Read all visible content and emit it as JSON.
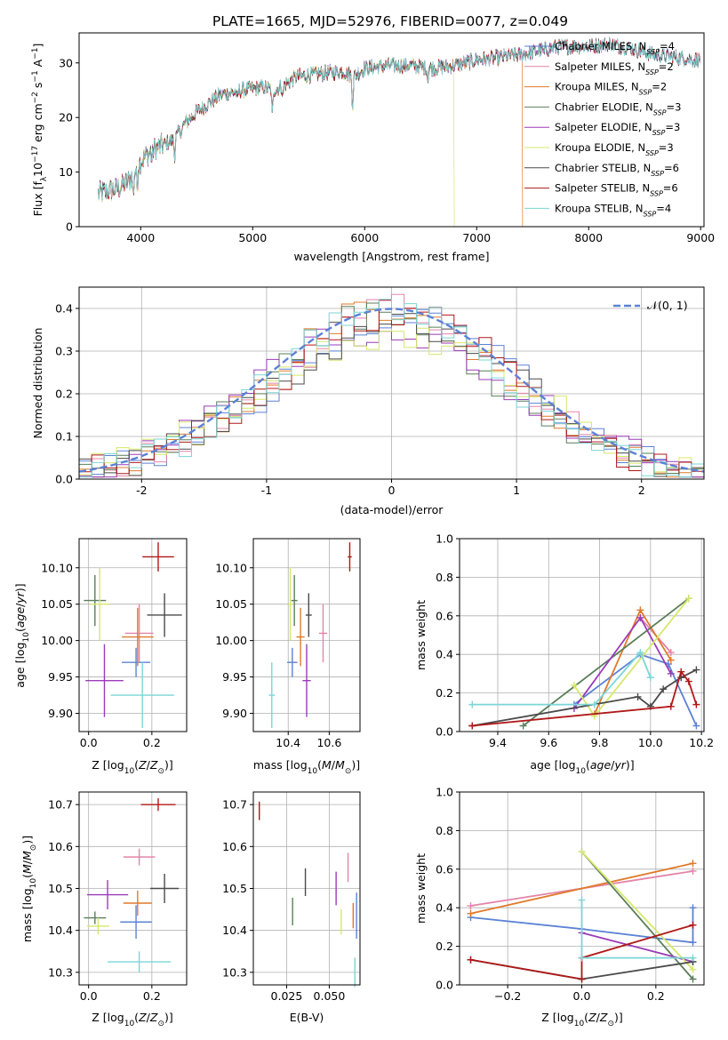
{
  "title": "PLATE=1665, MJD=52976, FIBERID=0077, z=0.049",
  "colors": {
    "Chabrier MILES": "#5b82d6",
    "Salpeter MILES": "#e484a8",
    "Kroupa MILES": "#e07a2a",
    "Chabrier ELODIE": "#5a7f5a",
    "Salpeter ELODIE": "#9a3bb8",
    "Kroupa ELODIE": "#d6e86a",
    "Chabrier STELIB": "#4a4a4a",
    "Salpeter STELIB": "#b01818",
    "Kroupa STELIB": "#7ad6d6"
  },
  "chart_data": [
    {
      "id": "spectrum",
      "type": "line",
      "title": "PLATE=1665, MJD=52976, FIBERID=0077, z=0.049",
      "xlabel": "wavelength [Angstrom, rest frame]",
      "ylabel": "Flux [f_λ 10⁻¹⁷ erg cm⁻² s⁻¹ A⁻¹]",
      "xlim": [
        3450,
        9030
      ],
      "ylim": [
        0,
        35.5
      ],
      "xticks": [
        4000,
        5000,
        6000,
        7000,
        8000,
        9000
      ],
      "yticks": [
        0,
        10,
        20,
        30
      ],
      "grid": false,
      "legend_position": "right",
      "legend": [
        "Chabrier MILES, N_SSP=4",
        "Salpeter MILES, N_SSP=2",
        "Kroupa MILES, N_SSP=2",
        "Chabrier ELODIE, N_SSP=3",
        "Salpeter ELODIE, N_SSP=3",
        "Kroupa ELODIE, N_SSP=3",
        "Chabrier STELIB, N_SSP=6",
        "Salpeter STELIB, N_SSP=6",
        "Kroupa STELIB, N_SSP=4"
      ],
      "continuum": {
        "x": [
          3620,
          3700,
          3800,
          3900,
          4000,
          4100,
          4200,
          4300,
          4400,
          4500,
          4700,
          4900,
          5100,
          5200,
          5400,
          5600,
          5800,
          5900,
          6000,
          6200,
          6400,
          6600,
          6800,
          7000,
          7200,
          7400,
          7600,
          7800,
          8000,
          8200,
          8400,
          8600,
          8800,
          9000
        ],
        "y": [
          6,
          6.5,
          7,
          8.5,
          12,
          14,
          15,
          16,
          19,
          21,
          24,
          25,
          25.5,
          25,
          27.5,
          28,
          28.5,
          27.5,
          29,
          29.5,
          29.5,
          29,
          29.5,
          30.5,
          31,
          31.5,
          32.5,
          33,
          33,
          33.5,
          32.5,
          31.5,
          31,
          30.5
        ]
      },
      "dropouts": [
        {
          "series": "Kroupa ELODIE",
          "x": 3920
        },
        {
          "series": "Kroupa ELODIE",
          "x": 6800
        },
        {
          "series": "Kroupa MILES",
          "x": 7410
        }
      ]
    },
    {
      "id": "residuals",
      "type": "histogram",
      "xlabel": "(data-model)/error",
      "ylabel": "Normed distribution",
      "xlim": [
        -2.5,
        2.5
      ],
      "ylim": [
        0,
        0.45
      ],
      "xticks": [
        -2,
        -1,
        0,
        1,
        2
      ],
      "yticks": [
        0.0,
        0.1,
        0.2,
        0.3,
        0.4
      ],
      "grid": true,
      "legend_position": "top-right",
      "normal_curve_label": "𝒩(0, 1)",
      "normal_curve_color": "#5b82d6",
      "bin_width": 0.1
    },
    {
      "id": "age-vs-Z",
      "type": "errorbar",
      "xlabel": "Z [log10(Z/Z⊙)]",
      "ylabel": "age [log10(age/yr)]",
      "xlim": [
        -0.03,
        0.31
      ],
      "ylim": [
        9.875,
        10.14
      ],
      "xticks": [
        0.0,
        0.2
      ],
      "yticks": [
        9.9,
        9.95,
        10.0,
        10.05,
        10.1
      ],
      "grid": true,
      "points": [
        {
          "series": "Chabrier MILES",
          "x": 0.15,
          "y": 9.97,
          "xerr": 0.045,
          "yerr": 0.02
        },
        {
          "series": "Salpeter MILES",
          "x": 0.16,
          "y": 10.01,
          "xerr": 0.045,
          "yerr": 0.04
        },
        {
          "series": "Kroupa MILES",
          "x": 0.155,
          "y": 10.005,
          "xerr": 0.05,
          "yerr": 0.04
        },
        {
          "series": "Chabrier ELODIE",
          "x": 0.02,
          "y": 10.055,
          "xerr": 0.035,
          "yerr": 0.035
        },
        {
          "series": "Salpeter ELODIE",
          "x": 0.05,
          "y": 9.945,
          "xerr": 0.06,
          "yerr": 0.05
        },
        {
          "series": "Kroupa ELODIE",
          "x": 0.035,
          "y": 10.05,
          "xerr": 0.03,
          "yerr": 0.05
        },
        {
          "series": "Chabrier STELIB",
          "x": 0.24,
          "y": 10.035,
          "xerr": 0.055,
          "yerr": 0.03
        },
        {
          "series": "Salpeter STELIB",
          "x": 0.22,
          "y": 10.115,
          "xerr": 0.05,
          "yerr": 0.02
        },
        {
          "series": "Kroupa STELIB",
          "x": 0.17,
          "y": 9.925,
          "xerr": 0.1,
          "yerr": 0.045
        }
      ]
    },
    {
      "id": "age-vs-mass",
      "type": "errorbar",
      "xlabel": "mass [log10(M/M⊙)]",
      "ylabel": "",
      "xlim": [
        10.23,
        10.75
      ],
      "ylim": [
        9.875,
        10.14
      ],
      "xticks": [
        10.4,
        10.6
      ],
      "yticks": [
        9.9,
        9.95,
        10.0,
        10.05,
        10.1
      ],
      "grid": true,
      "points": [
        {
          "series": "Chabrier MILES",
          "x": 10.42,
          "y": 9.97,
          "xerr": 0.025,
          "yerr": 0.02
        },
        {
          "series": "Salpeter MILES",
          "x": 10.57,
          "y": 10.01,
          "xerr": 0.02,
          "yerr": 0.04
        },
        {
          "series": "Kroupa MILES",
          "x": 10.46,
          "y": 10.005,
          "xerr": 0.02,
          "yerr": 0.04
        },
        {
          "series": "Chabrier ELODIE",
          "x": 10.43,
          "y": 10.055,
          "xerr": 0.015,
          "yerr": 0.035
        },
        {
          "series": "Salpeter ELODIE",
          "x": 10.49,
          "y": 9.945,
          "xerr": 0.02,
          "yerr": 0.05
        },
        {
          "series": "Kroupa ELODIE",
          "x": 10.41,
          "y": 10.05,
          "xerr": 0.01,
          "yerr": 0.05
        },
        {
          "series": "Chabrier STELIB",
          "x": 10.5,
          "y": 10.035,
          "xerr": 0.015,
          "yerr": 0.03
        },
        {
          "series": "Salpeter STELIB",
          "x": 10.7,
          "y": 10.115,
          "xerr": 0.01,
          "yerr": 0.02
        },
        {
          "series": "Kroupa STELIB",
          "x": 10.32,
          "y": 9.925,
          "xerr": 0.015,
          "yerr": 0.045
        }
      ]
    },
    {
      "id": "mass-weight-vs-age",
      "type": "line",
      "xlabel": "age [log10(age/yr)]",
      "ylabel": "mass weight",
      "xlim": [
        9.25,
        10.21
      ],
      "ylim": [
        0,
        1
      ],
      "xticks": [
        9.4,
        9.6,
        9.8,
        10.0,
        10.2
      ],
      "yticks": [
        0.0,
        0.2,
        0.4,
        0.6,
        0.8,
        1.0
      ],
      "grid": true,
      "series": [
        {
          "name": "Chabrier MILES",
          "x": [
            9.7,
            9.96,
            10.07,
            10.18
          ],
          "y": [
            0.14,
            0.4,
            0.35,
            0.03
          ]
        },
        {
          "name": "Salpeter MILES",
          "x": [
            9.96,
            10.08
          ],
          "y": [
            0.59,
            0.41
          ]
        },
        {
          "name": "Kroupa MILES",
          "x": [
            9.78,
            9.96,
            10.08
          ],
          "y": [
            0.09,
            0.63,
            0.37
          ]
        },
        {
          "name": "Chabrier ELODIE",
          "x": [
            9.5,
            10.15
          ],
          "y": [
            0.03,
            0.69
          ]
        },
        {
          "name": "Salpeter ELODIE",
          "x": [
            9.7,
            9.96,
            10.08
          ],
          "y": [
            0.12,
            0.59,
            0.3
          ]
        },
        {
          "name": "Kroupa ELODIE",
          "x": [
            9.7,
            9.78,
            10.15
          ],
          "y": [
            0.24,
            0.08,
            0.69
          ]
        },
        {
          "name": "Chabrier STELIB",
          "x": [
            9.3,
            9.95,
            10.0,
            10.05,
            10.12,
            10.18
          ],
          "y": [
            0.03,
            0.18,
            0.13,
            0.22,
            0.28,
            0.32
          ]
        },
        {
          "name": "Salpeter STELIB",
          "x": [
            9.3,
            10.08,
            10.12,
            10.15,
            10.18
          ],
          "y": [
            0.03,
            0.13,
            0.31,
            0.26,
            0.14
          ]
        },
        {
          "name": "Kroupa STELIB",
          "x": [
            9.3,
            9.78,
            9.96,
            10.0
          ],
          "y": [
            0.14,
            0.14,
            0.41,
            0.28
          ]
        }
      ]
    },
    {
      "id": "mass-vs-Z",
      "type": "errorbar",
      "xlabel": "Z [log10(Z/Z⊙)]",
      "ylabel": "mass [log10(M/M⊙)]",
      "xlim": [
        -0.03,
        0.31
      ],
      "ylim": [
        10.27,
        10.73
      ],
      "xticks": [
        0.0,
        0.2
      ],
      "yticks": [
        10.3,
        10.4,
        10.5,
        10.6,
        10.7
      ],
      "grid": true,
      "points": [
        {
          "series": "Chabrier MILES",
          "x": 0.15,
          "y": 10.42,
          "xerr": 0.05,
          "yerr": 0.04
        },
        {
          "series": "Salpeter MILES",
          "x": 0.16,
          "y": 10.575,
          "xerr": 0.05,
          "yerr": 0.02
        },
        {
          "series": "Kroupa MILES",
          "x": 0.155,
          "y": 10.465,
          "xerr": 0.045,
          "yerr": 0.03
        },
        {
          "series": "Chabrier ELODIE",
          "x": 0.02,
          "y": 10.43,
          "xerr": 0.035,
          "yerr": 0.015
        },
        {
          "series": "Salpeter ELODIE",
          "x": 0.06,
          "y": 10.485,
          "xerr": 0.065,
          "yerr": 0.035
        },
        {
          "series": "Kroupa ELODIE",
          "x": 0.03,
          "y": 10.41,
          "xerr": 0.035,
          "yerr": 0.02
        },
        {
          "series": "Chabrier STELIB",
          "x": 0.24,
          "y": 10.5,
          "xerr": 0.045,
          "yerr": 0.035
        },
        {
          "series": "Salpeter STELIB",
          "x": 0.22,
          "y": 10.7,
          "xerr": 0.055,
          "yerr": 0.015
        },
        {
          "series": "Kroupa STELIB",
          "x": 0.16,
          "y": 10.325,
          "xerr": 0.1,
          "yerr": 0.025
        }
      ]
    },
    {
      "id": "mass-vs-EBV",
      "type": "errorbar",
      "xlabel": "E(B-V)",
      "ylabel": "",
      "xlim": [
        0.0055,
        0.068
      ],
      "ylim": [
        10.27,
        10.73
      ],
      "xticks": [
        0.025,
        0.05
      ],
      "xticklabels": [
        "0.025",
        "0.050"
      ],
      "yticks": [
        10.3,
        10.4,
        10.5,
        10.6,
        10.7
      ],
      "grid": true,
      "points": [
        {
          "series": "Chabrier MILES",
          "x": 0.066,
          "y": 10.435,
          "xerr": 0,
          "yerr": 0.055
        },
        {
          "series": "Salpeter MILES",
          "x": 0.061,
          "y": 10.55,
          "xerr": 0,
          "yerr": 0.035
        },
        {
          "series": "Kroupa MILES",
          "x": 0.064,
          "y": 10.435,
          "xerr": 0,
          "yerr": 0.03
        },
        {
          "series": "Chabrier ELODIE",
          "x": 0.0285,
          "y": 10.445,
          "xerr": 0,
          "yerr": 0.033
        },
        {
          "series": "Salpeter ELODIE",
          "x": 0.054,
          "y": 10.5,
          "xerr": 0,
          "yerr": 0.04
        },
        {
          "series": "Kroupa ELODIE",
          "x": 0.057,
          "y": 10.42,
          "xerr": 0,
          "yerr": 0.03
        },
        {
          "series": "Chabrier STELIB",
          "x": 0.036,
          "y": 10.515,
          "xerr": 0,
          "yerr": 0.033
        },
        {
          "series": "Salpeter STELIB",
          "x": 0.009,
          "y": 10.685,
          "xerr": 0,
          "yerr": 0.022
        },
        {
          "series": "Kroupa STELIB",
          "x": 0.065,
          "y": 10.3,
          "xerr": 0,
          "yerr": 0.035
        }
      ]
    },
    {
      "id": "mass-weight-vs-Z",
      "type": "line",
      "xlabel": "Z [log10(Z/Z⊙)]",
      "ylabel": "mass weight",
      "xlim": [
        -0.33,
        0.33
      ],
      "ylim": [
        0,
        1
      ],
      "xticks": [
        -0.2,
        0.0,
        0.2
      ],
      "xticklabels": [
        "−0.2",
        "0.0",
        "0.2"
      ],
      "yticks": [
        0.0,
        0.2,
        0.4,
        0.6,
        0.8,
        1.0
      ],
      "grid": true,
      "series": [
        {
          "name": "Chabrier MILES",
          "x": [
            -0.3,
            0.0,
            0.3,
            0.3
          ],
          "y": [
            0.35,
            0.29,
            0.22,
            0.4
          ]
        },
        {
          "name": "Salpeter MILES",
          "x": [
            -0.3,
            0.3
          ],
          "y": [
            0.41,
            0.59
          ]
        },
        {
          "name": "Kroupa MILES",
          "x": [
            -0.3,
            0.3
          ],
          "y": [
            0.37,
            0.63
          ]
        },
        {
          "name": "Chabrier ELODIE",
          "x": [
            0.0,
            0.3
          ],
          "y": [
            0.69,
            0.03
          ]
        },
        {
          "name": "Salpeter ELODIE",
          "x": [
            0.0,
            0.3
          ],
          "y": [
            0.27,
            0.12
          ]
        },
        {
          "name": "Kroupa ELODIE",
          "x": [
            0.0,
            0.3
          ],
          "y": [
            0.69,
            0.08
          ]
        },
        {
          "name": "Chabrier STELIB",
          "x": [
            -0.3,
            0.0,
            0.3
          ],
          "y": [
            0.13,
            0.03,
            0.12
          ]
        },
        {
          "name": "Salpeter STELIB",
          "x": [
            -0.3,
            0.0,
            0.0,
            0.3
          ],
          "y": [
            0.13,
            0.03,
            0.14,
            0.31
          ]
        },
        {
          "name": "Kroupa STELIB",
          "x": [
            0.0,
            0.0,
            0.3
          ],
          "y": [
            0.44,
            0.14,
            0.14
          ]
        }
      ]
    }
  ]
}
